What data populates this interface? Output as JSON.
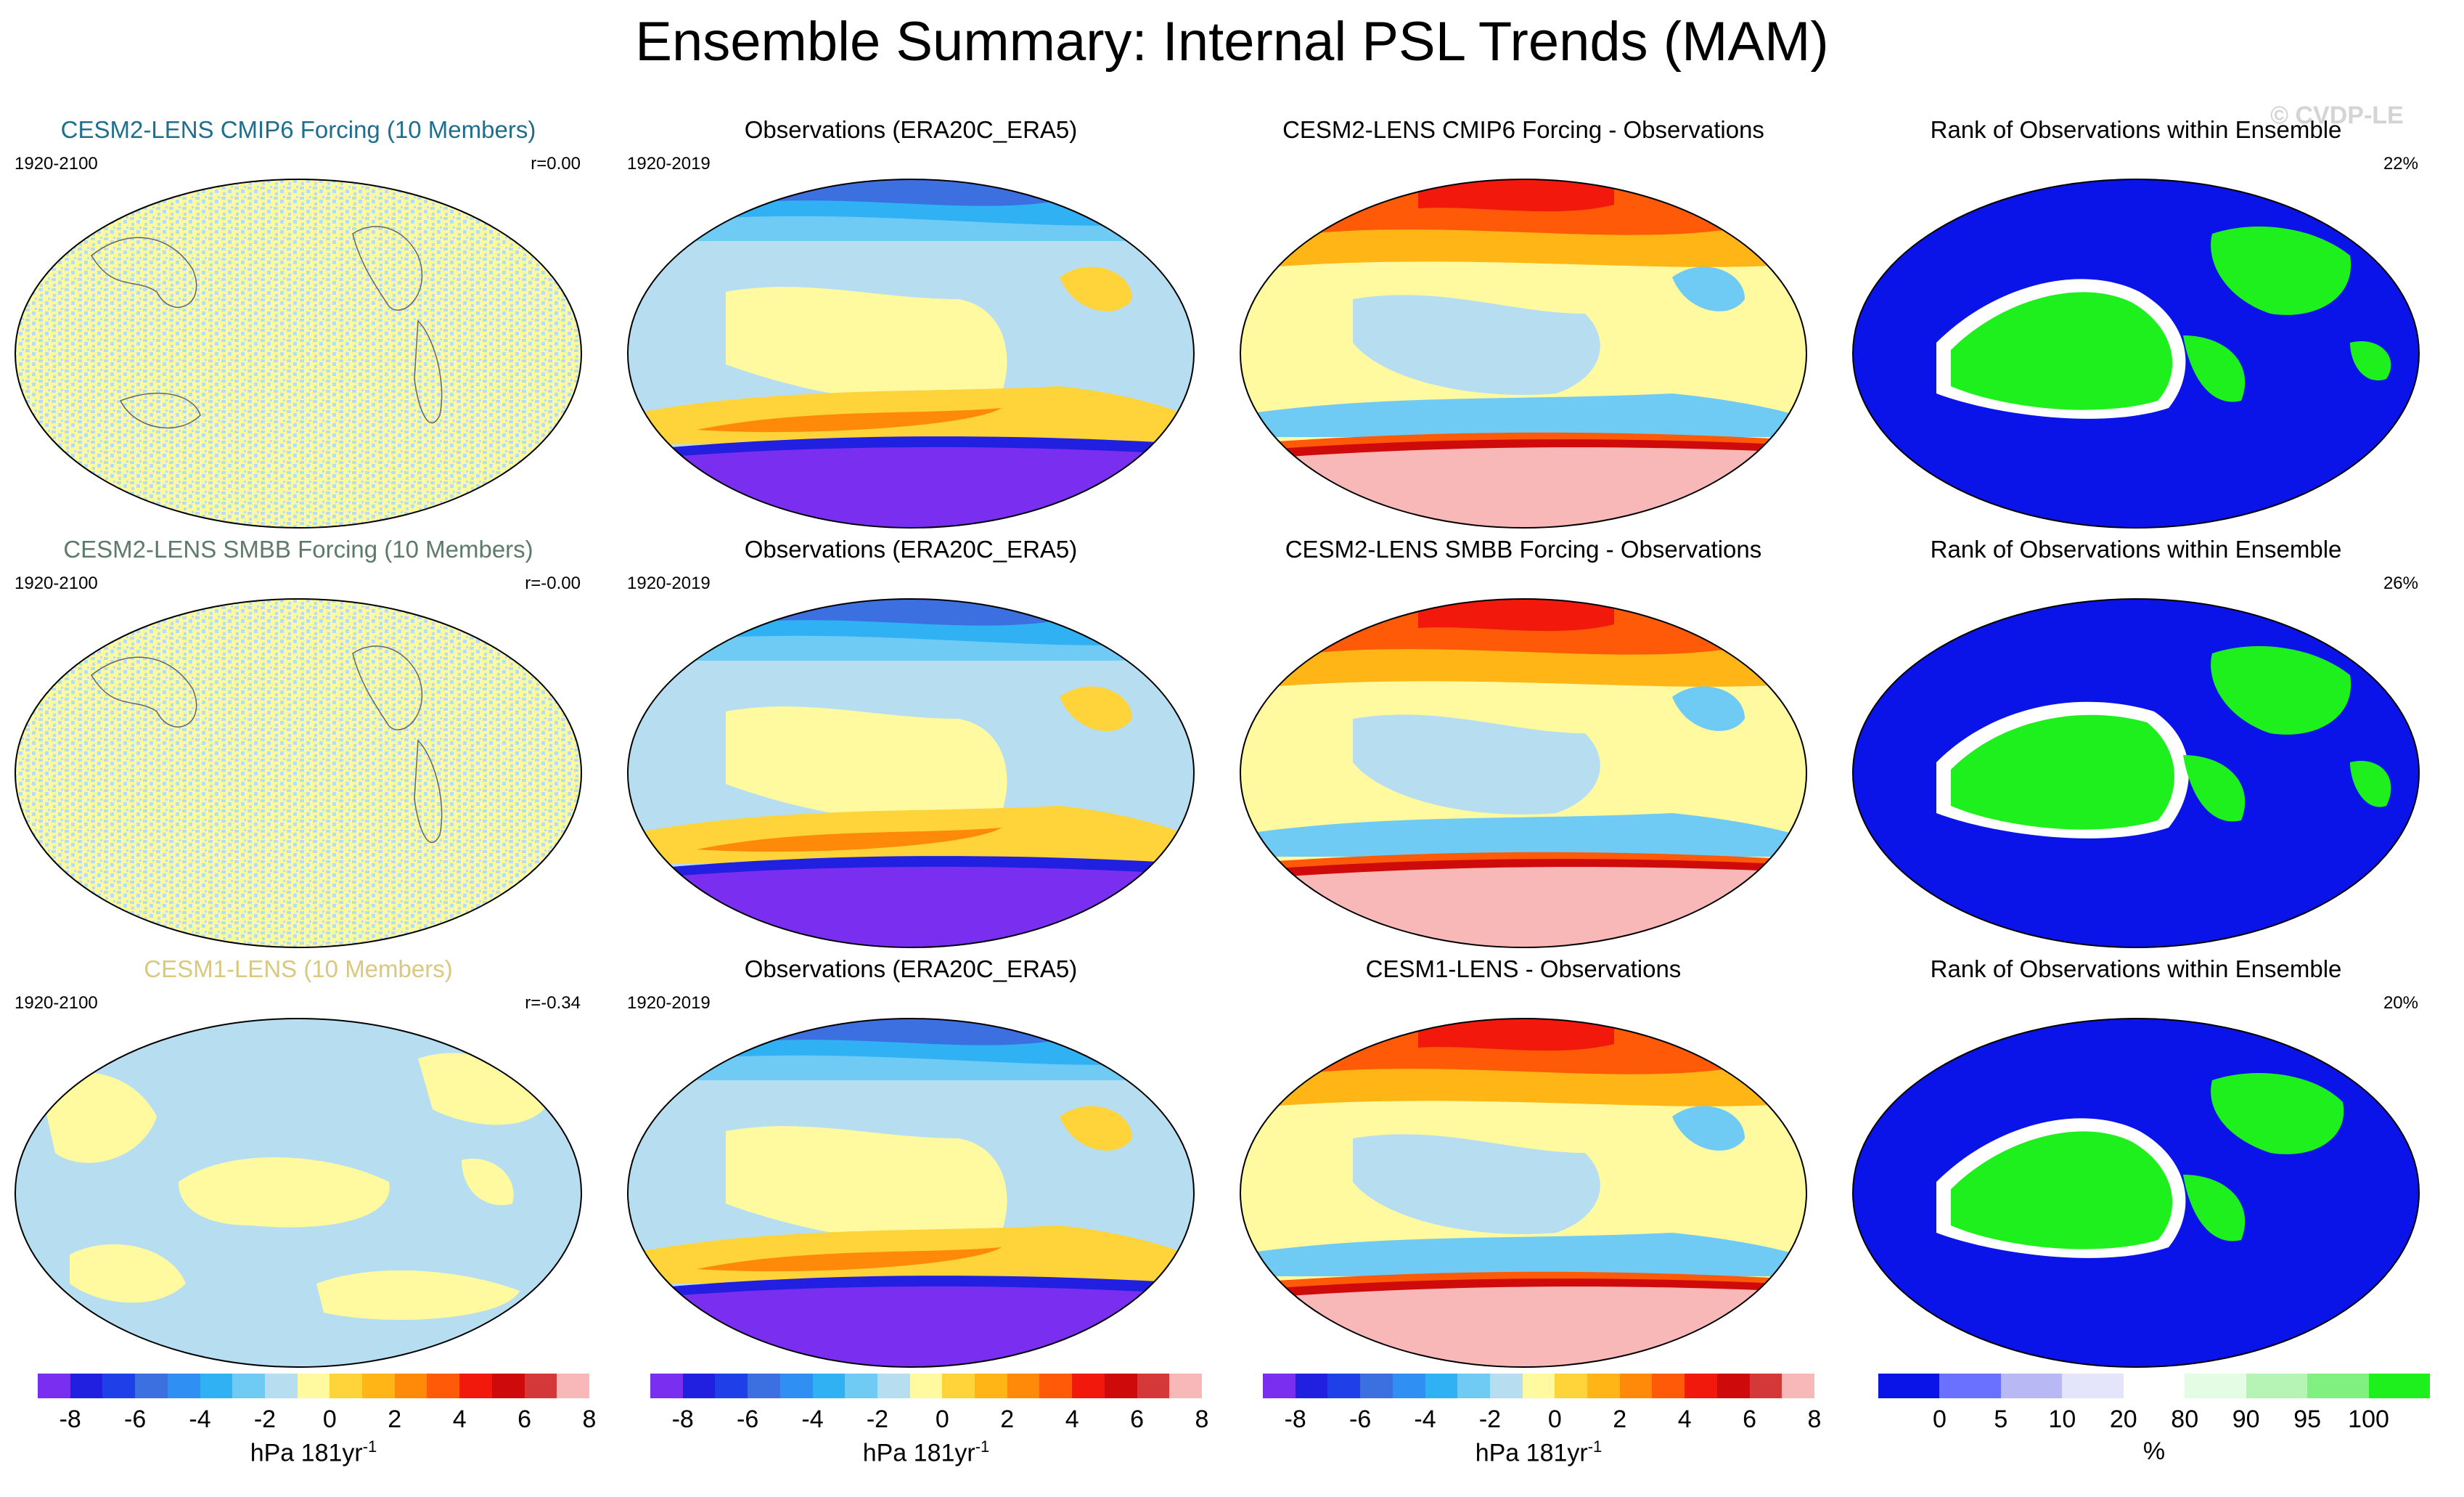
{
  "title": "Ensemble Summary: Internal PSL Trends (MAM)",
  "watermark": "© CVDP-LE",
  "colors": {
    "diverging": [
      "#7a2ff0",
      "#2220e0",
      "#1f3fe8",
      "#3c6fe0",
      "#2f8ff2",
      "#2fb1f4",
      "#6fcaf4",
      "#b6def0",
      "#fffaa0",
      "#ffd43a",
      "#ffb516",
      "#ff8a0a",
      "#ff5a08",
      "#f2190c",
      "#cf0a0a",
      "#d43838",
      "#f8b8b8"
    ],
    "rank": [
      "#0a14e8",
      "#6a70ff",
      "#b8b8f4",
      "#e4e4fa",
      "#ffffff",
      "#e4fbe4",
      "#b6f4b6",
      "#80f080",
      "#1ef01e"
    ]
  },
  "rows": [
    {
      "model": {
        "title": "CESM2-LENS CMIP6 Forcing (10 Members)",
        "title_color": "#1f6e8e",
        "years": "1920-2100",
        "corr": "r=0.00"
      },
      "obs": {
        "title": "Observations (ERA20C_ERA5)",
        "years": "1920-2019"
      },
      "diff": {
        "title": "CESM2-LENS CMIP6 Forcing - Observations"
      },
      "rank": {
        "title": "Rank of Observations within Ensemble",
        "pct": "22%"
      }
    },
    {
      "model": {
        "title": "CESM2-LENS SMBB Forcing (10 Members)",
        "title_color": "#5d7a6a",
        "years": "1920-2100",
        "corr": "r=-0.00"
      },
      "obs": {
        "title": "Observations (ERA20C_ERA5)",
        "years": "1920-2019"
      },
      "diff": {
        "title": "CESM2-LENS SMBB Forcing - Observations"
      },
      "rank": {
        "title": "Rank of Observations within Ensemble",
        "pct": "26%"
      }
    },
    {
      "model": {
        "title": "CESM1-LENS (10 Members)",
        "title_color": "#d8c880",
        "years": "1920-2100",
        "corr": "r=-0.34"
      },
      "obs": {
        "title": "Observations (ERA20C_ERA5)",
        "years": "1920-2019"
      },
      "diff": {
        "title": "CESM1-LENS - Observations"
      },
      "rank": {
        "title": "Rank of Observations within Ensemble",
        "pct": "20%"
      }
    }
  ],
  "colorbars": {
    "trend": {
      "ticks": [
        "-8",
        "-6",
        "-4",
        "-2",
        "0",
        "2",
        "4",
        "6",
        "8"
      ],
      "unit": "hPa 181yr",
      "unit_sup": "-1"
    },
    "rank": {
      "ticks": [
        "0",
        "5",
        "10",
        "20",
        "80",
        "90",
        "95",
        "100"
      ],
      "unit": "%"
    }
  },
  "chart_data": [
    {
      "type": "heatmap",
      "title": "CESM2-LENS CMIP6 Forcing (10 Members)",
      "period": "1920-2100",
      "pattern_correlation": "r=0.00",
      "units": "hPa 181yr-1",
      "levels": [
        -8,
        -7,
        -6,
        -5,
        -4,
        -3,
        -2,
        -1,
        0,
        1,
        2,
        3,
        4,
        5,
        6,
        7,
        8
      ]
    },
    {
      "type": "heatmap",
      "title": "Observations (ERA20C_ERA5)",
      "period": "1920-2019",
      "units": "hPa 181yr-1"
    },
    {
      "type": "heatmap",
      "title": "CESM2-LENS CMIP6 Forcing - Observations",
      "units": "hPa 181yr-1"
    },
    {
      "type": "heatmap",
      "title": "Rank of Observations within Ensemble",
      "area_percent": "22%",
      "units": "%",
      "levels": [
        0,
        5,
        10,
        20,
        80,
        90,
        95,
        100
      ]
    },
    {
      "type": "heatmap",
      "title": "CESM2-LENS SMBB Forcing (10 Members)",
      "period": "1920-2100",
      "pattern_correlation": "r=-0.00",
      "units": "hPa 181yr-1"
    },
    {
      "type": "heatmap",
      "title": "Observations (ERA20C_ERA5)",
      "period": "1920-2019",
      "units": "hPa 181yr-1"
    },
    {
      "type": "heatmap",
      "title": "CESM2-LENS SMBB Forcing - Observations",
      "units": "hPa 181yr-1"
    },
    {
      "type": "heatmap",
      "title": "Rank of Observations within Ensemble",
      "area_percent": "26%",
      "units": "%"
    },
    {
      "type": "heatmap",
      "title": "CESM1-LENS (10 Members)",
      "period": "1920-2100",
      "pattern_correlation": "r=-0.34",
      "units": "hPa 181yr-1"
    },
    {
      "type": "heatmap",
      "title": "Observations (ERA20C_ERA5)",
      "period": "1920-2019",
      "units": "hPa 181yr-1"
    },
    {
      "type": "heatmap",
      "title": "CESM1-LENS - Observations",
      "units": "hPa 181yr-1"
    },
    {
      "type": "heatmap",
      "title": "Rank of Observations within Ensemble",
      "area_percent": "20%",
      "units": "%"
    }
  ]
}
